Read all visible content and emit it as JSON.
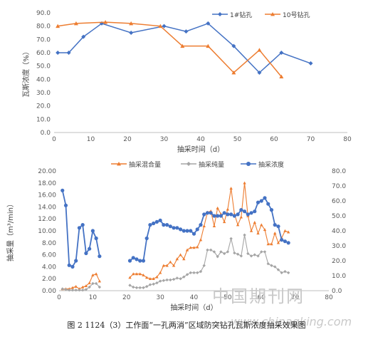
{
  "chart_data": [
    {
      "type": "line",
      "xlabel": "抽采时间（d）",
      "ylabel": "瓦斯浓度（%）",
      "xlim": [
        0,
        80
      ],
      "ylim": [
        0,
        90
      ],
      "x_ticks": [
        "0",
        "10",
        "20",
        "30",
        "40",
        "50",
        "60",
        "70",
        "80"
      ],
      "y_ticks": [
        "0.0",
        "10.0",
        "20.0",
        "30.0",
        "40.0",
        "50.0",
        "60.0",
        "70.0",
        "80.0",
        "90.0"
      ],
      "legend_position": "top-right",
      "series": [
        {
          "name": "1#钻孔",
          "color": "#4472c4",
          "marker": "diamond",
          "x": [
            1,
            4,
            8,
            13,
            21,
            30,
            36,
            42,
            49,
            56,
            62,
            70
          ],
          "y": [
            60,
            60,
            72,
            82,
            75,
            80,
            76,
            82,
            65,
            45,
            60,
            52
          ]
        },
        {
          "name": "10号钻孔",
          "color": "#ed7d31",
          "marker": "triangle",
          "x": [
            1,
            6,
            14,
            21,
            29,
            35,
            42,
            49,
            56,
            62
          ],
          "y": [
            80,
            82,
            83,
            82,
            80,
            65,
            65,
            45,
            62,
            42
          ]
        }
      ]
    },
    {
      "type": "line",
      "xlabel": "抽采时间（d）",
      "ylabel": "抽采量（m³/min）",
      "xlim": [
        0,
        80
      ],
      "ylim": [
        0,
        20
      ],
      "y2lim": [
        0,
        80
      ],
      "x_ticks": [
        "0",
        "10",
        "20",
        "30",
        "40",
        "50",
        "60",
        "70",
        "80"
      ],
      "y_ticks": [
        "0.00",
        "2.00",
        "4.00",
        "6.00",
        "8.00",
        "10.00",
        "12.00",
        "14.00",
        "16.00",
        "18.00",
        "20.00"
      ],
      "y2_ticks": [
        "0.0",
        "10.0",
        "20.0",
        "30.0",
        "40.0",
        "50.0",
        "60.0",
        "70.0",
        "80.0"
      ],
      "legend_position": "top",
      "series": [
        {
          "name": "抽采混合量",
          "color": "#ed7d31",
          "marker": "triangle",
          "axis": "left",
          "segments": [
            [
              [
                1,
                0.3
              ],
              [
                2,
                0.3
              ],
              [
                3,
                0.3
              ],
              [
                4,
                0.5
              ],
              [
                5,
                0.7
              ],
              [
                6,
                0.3
              ],
              [
                7,
                0.6
              ],
              [
                8,
                0.8
              ],
              [
                9,
                1.3
              ],
              [
                10,
                2.6
              ],
              [
                11,
                2.8
              ],
              [
                12,
                1.6
              ]
            ],
            [
              [
                21,
                2.2
              ],
              [
                22,
                2.8
              ],
              [
                23,
                2.8
              ],
              [
                24,
                2.8
              ],
              [
                25,
                2.6
              ],
              [
                26,
                2.2
              ],
              [
                27,
                2.0
              ],
              [
                28,
                2.0
              ],
              [
                29,
                2.3
              ],
              [
                30,
                3.0
              ],
              [
                31,
                4.2
              ],
              [
                32,
                4.2
              ],
              [
                33,
                4.8
              ],
              [
                34,
                4.2
              ],
              [
                35,
                5.3
              ],
              [
                36,
                6.0
              ],
              [
                37,
                5.3
              ],
              [
                38,
                6.8
              ],
              [
                39,
                7.2
              ],
              [
                40,
                7.2
              ],
              [
                41,
                7.3
              ],
              [
                42,
                8.5
              ],
              [
                43,
                10.8
              ],
              [
                44,
                13.1
              ],
              [
                45,
                13.3
              ],
              [
                46,
                10.8
              ],
              [
                47,
                13.8
              ],
              [
                48,
                12.8
              ],
              [
                49,
                11.5
              ],
              [
                50,
                13.6
              ],
              [
                51,
                17.1
              ],
              [
                52,
                12.8
              ],
              [
                53,
                11.0
              ],
              [
                54,
                12.3
              ],
              [
                55,
                18.0
              ],
              [
                56,
                12.5
              ],
              [
                57,
                10.0
              ],
              [
                58,
                11.4
              ],
              [
                59,
                9.6
              ],
              [
                60,
                11.0
              ],
              [
                61,
                10.2
              ],
              [
                62,
                7.8
              ],
              [
                63,
                7.8
              ],
              [
                64,
                9.6
              ],
              [
                65,
                8.0
              ],
              [
                66,
                8.8
              ],
              [
                67,
                10.0
              ],
              [
                68,
                9.8
              ]
            ]
          ]
        },
        {
          "name": "抽采纯量",
          "color": "#a5a5a5",
          "marker": "diamond",
          "axis": "left",
          "segments": [
            [
              [
                1,
                0.3
              ],
              [
                2,
                0.2
              ],
              [
                3,
                0.1
              ],
              [
                4,
                0.1
              ],
              [
                5,
                0.1
              ],
              [
                6,
                0.1
              ],
              [
                7,
                0.1
              ],
              [
                8,
                0.2
              ],
              [
                9,
                0.6
              ],
              [
                10,
                1.2
              ],
              [
                11,
                1.2
              ],
              [
                12,
                0.6
              ]
            ],
            [
              [
                21,
                0.9
              ],
              [
                22,
                0.6
              ],
              [
                23,
                0.5
              ],
              [
                24,
                0.5
              ],
              [
                25,
                0.5
              ],
              [
                26,
                0.7
              ],
              [
                27,
                1.0
              ],
              [
                28,
                1.1
              ],
              [
                29,
                1.3
              ],
              [
                30,
                1.6
              ],
              [
                31,
                1.7
              ],
              [
                32,
                1.8
              ],
              [
                33,
                1.8
              ],
              [
                34,
                1.9
              ],
              [
                35,
                2.1
              ],
              [
                36,
                2.0
              ],
              [
                37,
                2.3
              ],
              [
                38,
                2.7
              ],
              [
                39,
                3.0
              ],
              [
                40,
                3.0
              ],
              [
                41,
                3.0
              ],
              [
                42,
                3.2
              ],
              [
                43,
                4.2
              ],
              [
                44,
                6.8
              ],
              [
                45,
                6.8
              ],
              [
                46,
                6.5
              ],
              [
                47,
                5.7
              ],
              [
                48,
                6.5
              ],
              [
                49,
                6.2
              ],
              [
                50,
                6.5
              ],
              [
                51,
                8.7
              ],
              [
                52,
                6.3
              ],
              [
                53,
                6.1
              ],
              [
                54,
                5.8
              ],
              [
                55,
                9.3
              ],
              [
                56,
                6.2
              ],
              [
                57,
                5.8
              ],
              [
                58,
                6.0
              ],
              [
                59,
                5.8
              ],
              [
                60,
                6.5
              ],
              [
                61,
                6.5
              ],
              [
                62,
                4.5
              ],
              [
                63,
                4.2
              ],
              [
                64,
                4.0
              ],
              [
                65,
                3.5
              ],
              [
                66,
                3.0
              ],
              [
                67,
                3.2
              ],
              [
                68,
                3.0
              ]
            ]
          ]
        },
        {
          "name": "抽采浓度",
          "color": "#4472c4",
          "marker": "circle",
          "axis": "right",
          "segments": [
            [
              [
                1,
                67
              ],
              [
                2,
                57
              ],
              [
                3,
                17
              ],
              [
                4,
                16
              ],
              [
                5,
                20
              ],
              [
                6,
                42
              ],
              [
                7,
                44
              ],
              [
                8,
                25
              ],
              [
                9,
                28
              ],
              [
                10,
                40
              ],
              [
                11,
                35
              ],
              [
                12,
                23
              ]
            ],
            [
              [
                21,
                20
              ],
              [
                22,
                22
              ],
              [
                23,
                21
              ],
              [
                24,
                20
              ],
              [
                25,
                20
              ],
              [
                26,
                35
              ],
              [
                27,
                44
              ],
              [
                28,
                45
              ],
              [
                29,
                46
              ],
              [
                30,
                47
              ],
              [
                31,
                44
              ],
              [
                32,
                44
              ],
              [
                33,
                43
              ],
              [
                34,
                42
              ],
              [
                35,
                42
              ],
              [
                36,
                41
              ],
              [
                37,
                40
              ],
              [
                38,
                40
              ],
              [
                39,
                40
              ],
              [
                40,
                38
              ],
              [
                41,
                41
              ],
              [
                42,
                44
              ],
              [
                43,
                51
              ],
              [
                44,
                52
              ],
              [
                45,
                52
              ],
              [
                46,
                50
              ],
              [
                47,
                50
              ],
              [
                48,
                50
              ],
              [
                49,
                52
              ],
              [
                50,
                51
              ],
              [
                51,
                51
              ],
              [
                52,
                50
              ],
              [
                53,
                51
              ],
              [
                54,
                54
              ],
              [
                55,
                53
              ],
              [
                56,
                51
              ],
              [
                57,
                52
              ],
              [
                58,
                53
              ],
              [
                59,
                59
              ],
              [
                60,
                60
              ],
              [
                61,
                62
              ],
              [
                62,
                58
              ],
              [
                63,
                54
              ],
              [
                64,
                44
              ],
              [
                65,
                43
              ],
              [
                66,
                34
              ],
              [
                67,
                33
              ],
              [
                68,
                32
              ]
            ]
          ]
        }
      ]
    }
  ],
  "watermark": {
    "line1": "中国期刊网",
    "line2": "www.chinaqking.com"
  },
  "caption": "图 2   1124（3）工作面“一孔两消”区域防突钻孔瓦斯浓度抽采效果图"
}
